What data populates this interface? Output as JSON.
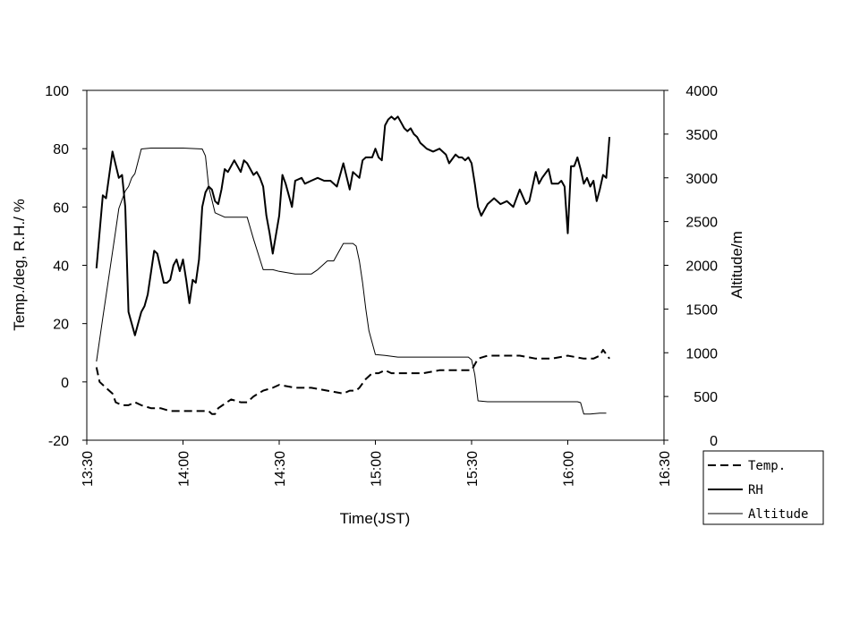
{
  "chart_data": {
    "type": "line",
    "xlabel": "Time(JST)",
    "ylabel_left": "Temp./deg, R.H./ %",
    "ylabel_right": "Altitude/m",
    "x_ticks": [
      "13:30",
      "14:00",
      "14:30",
      "15:00",
      "15:30",
      "16:00",
      "16:30"
    ],
    "x_tick_minutes": [
      810,
      840,
      870,
      900,
      930,
      960,
      990
    ],
    "xlim": [
      810,
      990
    ],
    "ylim_left": [
      -20,
      100
    ],
    "y_ticks_left": [
      "-20",
      "0",
      "20",
      "40",
      "60",
      "80",
      "100"
    ],
    "ylim_right": [
      0,
      4000
    ],
    "y_ticks_right": [
      "0",
      "500",
      "1000",
      "1500",
      "2000",
      "2500",
      "3000",
      "3500",
      "4000"
    ],
    "legend_position": "bottom-right",
    "grid": false,
    "series": [
      {
        "name": "Temp.",
        "axis": "left",
        "style": "dashed",
        "x": [
          813,
          814,
          816,
          818,
          819,
          821,
          823,
          825,
          827,
          830,
          833,
          836,
          840,
          845,
          848,
          849,
          850,
          851,
          855,
          858,
          860,
          862,
          865,
          868,
          870,
          875,
          880,
          885,
          890,
          892,
          894,
          895,
          897,
          899,
          901,
          903,
          905,
          910,
          915,
          920,
          925,
          928,
          930,
          932,
          935,
          940,
          945,
          950,
          955,
          960,
          965,
          968,
          970,
          971,
          973
        ],
        "y": [
          5,
          0,
          -2,
          -4,
          -7,
          -8,
          -8,
          -7,
          -8,
          -9,
          -9,
          -10,
          -10,
          -10,
          -10,
          -11,
          -11,
          -9,
          -6,
          -7,
          -7,
          -5,
          -3,
          -2,
          -1,
          -2,
          -2,
          -3,
          -4,
          -3,
          -3,
          -2,
          1,
          3,
          3,
          4,
          3,
          3,
          3,
          4,
          4,
          4,
          4,
          8,
          9,
          9,
          9,
          8,
          8,
          9,
          8,
          8,
          9,
          11,
          8
        ]
      },
      {
        "name": "RH",
        "axis": "left",
        "style": "solid",
        "x": [
          813,
          815,
          816,
          818,
          820,
          821,
          822,
          823,
          824,
          825,
          826,
          827,
          828,
          829,
          831,
          832,
          834,
          835,
          836,
          837,
          838,
          839,
          840,
          841,
          842,
          843,
          844,
          845,
          846,
          847,
          848,
          849,
          850,
          851,
          852,
          853,
          854,
          856,
          858,
          859,
          860,
          862,
          863,
          864,
          865,
          866,
          867,
          868,
          870,
          871,
          872,
          874,
          875,
          877,
          878,
          880,
          882,
          884,
          886,
          888,
          890,
          892,
          893,
          895,
          896,
          897,
          899,
          900,
          901,
          902,
          903,
          904,
          905,
          906,
          907,
          908,
          909,
          910,
          911,
          912,
          913,
          914,
          915,
          916,
          918,
          920,
          922,
          923,
          925,
          926,
          927,
          928,
          929,
          930,
          931,
          932,
          933,
          935,
          937,
          939,
          941,
          943,
          945,
          947,
          948,
          950,
          951,
          952,
          954,
          955,
          957,
          958,
          959,
          960,
          961,
          962,
          963,
          964,
          965,
          966,
          967,
          968,
          969,
          970,
          971,
          972,
          973
        ],
        "y": [
          39,
          64,
          63,
          79,
          70,
          71,
          60,
          24,
          20,
          16,
          20,
          24,
          26,
          30,
          45,
          44,
          34,
          34,
          35,
          40,
          42,
          38,
          42,
          35,
          27,
          35,
          34,
          42,
          60,
          65,
          67,
          66,
          62,
          61,
          66,
          73,
          72,
          76,
          72,
          76,
          75,
          71,
          72,
          70,
          67,
          57,
          51,
          44,
          57,
          71,
          68,
          60,
          69,
          70,
          68,
          69,
          70,
          69,
          69,
          67,
          75,
          66,
          72,
          70,
          76,
          77,
          77,
          80,
          77,
          76,
          88,
          90,
          91,
          90,
          91,
          89,
          87,
          86,
          87,
          85,
          84,
          82,
          81,
          80,
          79,
          80,
          78,
          75,
          78,
          77,
          77,
          76,
          77,
          75,
          68,
          60,
          57,
          61,
          63,
          61,
          62,
          60,
          66,
          61,
          62,
          72,
          68,
          70,
          73,
          68,
          68,
          69,
          67,
          51,
          74,
          74,
          77,
          73,
          68,
          70,
          67,
          69,
          62,
          66,
          71,
          70,
          84
        ]
      },
      {
        "name": "Altitude",
        "axis": "right",
        "style": "thin",
        "x": [
          813,
          815,
          817,
          819,
          820,
          821,
          822,
          823,
          824,
          825,
          827,
          830,
          835,
          840,
          846,
          847,
          848,
          850,
          853,
          855,
          858,
          860,
          862,
          865,
          868,
          870,
          875,
          880,
          882,
          885,
          887,
          890,
          892,
          893,
          894,
          895,
          896,
          897,
          898,
          900,
          903,
          907,
          910,
          915,
          920,
          925,
          929,
          930,
          931,
          932,
          935,
          940,
          945,
          950,
          955,
          960,
          963,
          964,
          965,
          967,
          970,
          972
        ],
        "y": [
          900,
          1400,
          1900,
          2400,
          2650,
          2750,
          2850,
          2900,
          3000,
          3050,
          3330,
          3340,
          3340,
          3340,
          3330,
          3250,
          2900,
          2600,
          2550,
          2550,
          2550,
          2550,
          2300,
          1950,
          1950,
          1930,
          1900,
          1900,
          1950,
          2050,
          2050,
          2250,
          2250,
          2250,
          2220,
          2050,
          1800,
          1500,
          1250,
          980,
          970,
          950,
          950,
          950,
          950,
          950,
          950,
          920,
          750,
          450,
          440,
          440,
          440,
          440,
          440,
          440,
          440,
          430,
          300,
          300,
          310,
          310
        ]
      }
    ]
  }
}
